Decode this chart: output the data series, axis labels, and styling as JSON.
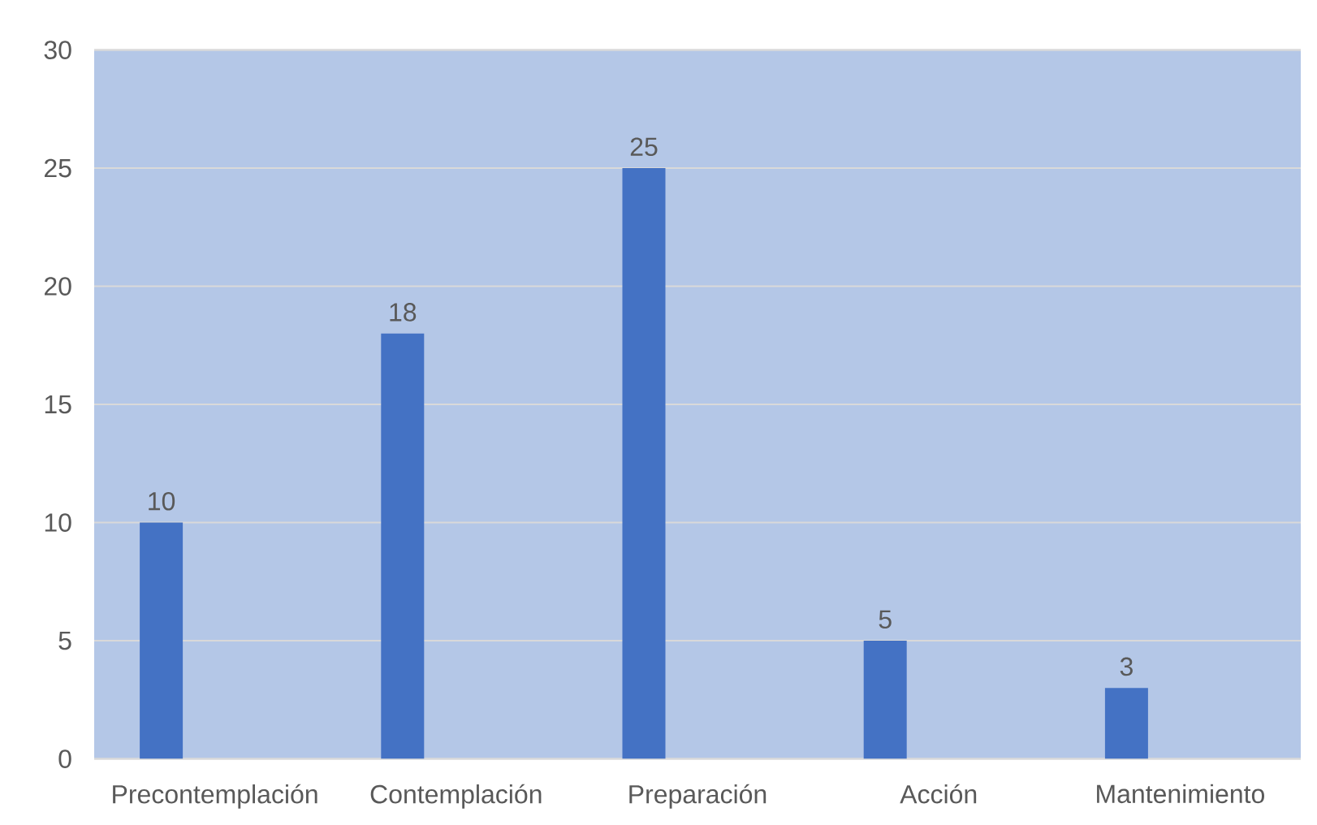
{
  "chart_data": {
    "type": "bar",
    "categories": [
      "Precontemplación",
      "Contemplación",
      "Preparación",
      "Acción",
      "Mantenimiento"
    ],
    "values": [
      10,
      18,
      25,
      5,
      3
    ],
    "color": "#4472c4",
    "ylim": [
      0,
      30
    ],
    "yticks": [
      0,
      5,
      10,
      15,
      20,
      25,
      30
    ],
    "grid": "y",
    "data_labels": true
  }
}
